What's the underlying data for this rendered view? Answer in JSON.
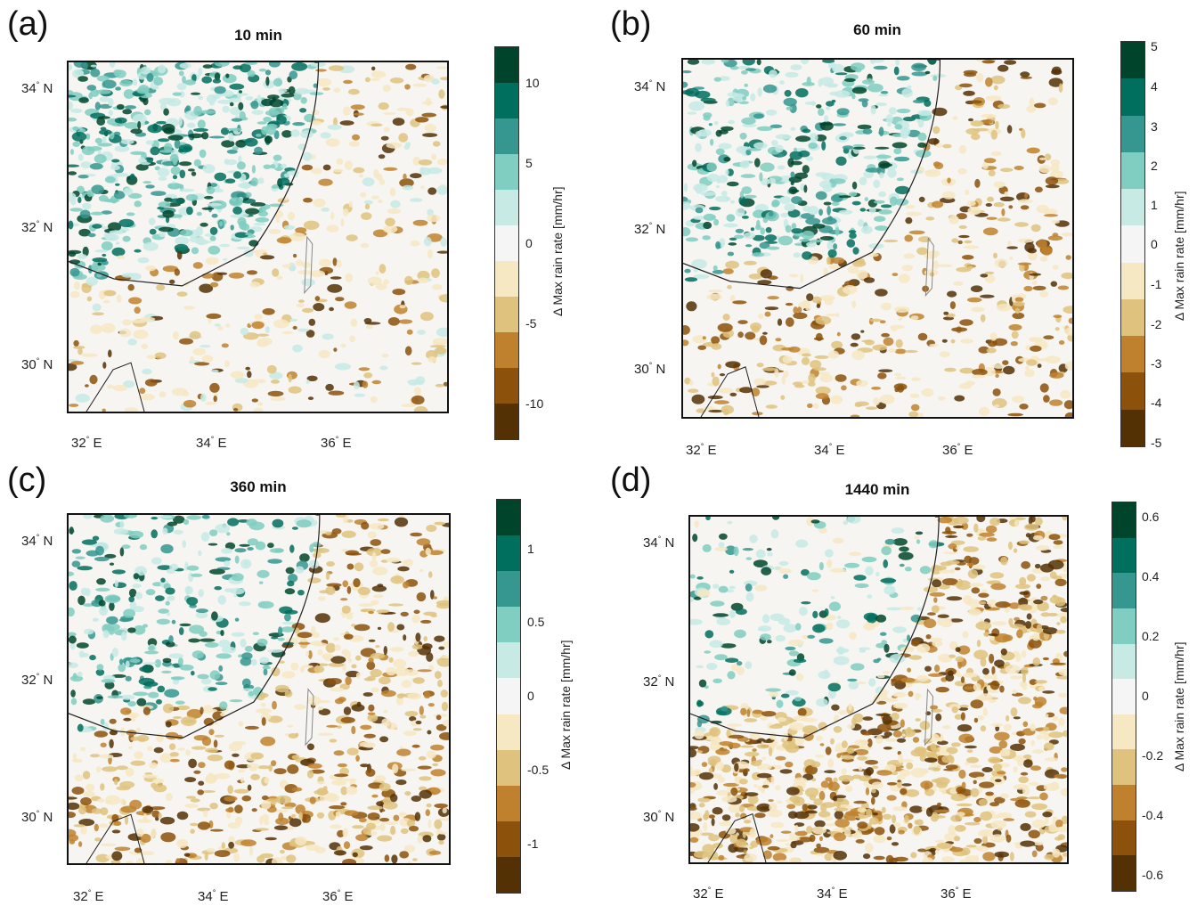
{
  "panels": [
    {
      "letter": "(a)",
      "title": "10 min",
      "lat_labels": [
        "34",
        "32",
        "30"
      ],
      "lon_labels": [
        "32",
        "34",
        "36"
      ],
      "lat_suffix": "N",
      "lon_suffix": "E",
      "colorbar": {
        "label": "Δ Max rain rate [mm/hr]",
        "ticks": [
          "10",
          "5",
          "0",
          "-5",
          "-10"
        ]
      },
      "field": {
        "wet_bias": 0.85,
        "dry_bias": 0.25
      }
    },
    {
      "letter": "(b)",
      "title": "60 min",
      "lat_labels": [
        "34",
        "32",
        "30"
      ],
      "lon_labels": [
        "32",
        "34",
        "36"
      ],
      "lat_suffix": "N",
      "lon_suffix": "E",
      "colorbar": {
        "label": "Δ Max rain rate [mm/hr]",
        "ticks": [
          "5",
          "4",
          "3",
          "2",
          "1",
          "0",
          "-1",
          "-2",
          "-3",
          "-4",
          "-5"
        ]
      },
      "field": {
        "wet_bias": 0.65,
        "dry_bias": 0.4
      }
    },
    {
      "letter": "(c)",
      "title": "360 min",
      "lat_labels": [
        "34",
        "32",
        "30"
      ],
      "lon_labels": [
        "32",
        "34",
        "36"
      ],
      "lat_suffix": "N",
      "lon_suffix": "E",
      "colorbar": {
        "label": "Δ Max rain rate [mm/hr]",
        "ticks": [
          "1",
          "0.5",
          "0",
          "-0.5",
          "-1"
        ]
      },
      "field": {
        "wet_bias": 0.45,
        "dry_bias": 0.65
      }
    },
    {
      "letter": "(d)",
      "title": "1440 min",
      "lat_labels": [
        "34",
        "32",
        "30"
      ],
      "lon_labels": [
        "32",
        "34",
        "36"
      ],
      "lat_suffix": "N",
      "lon_suffix": "E",
      "colorbar": {
        "label": "Δ Max rain rate [mm/hr]",
        "ticks": [
          "0.6",
          "0.4",
          "0.2",
          "0",
          "-0.2",
          "-0.4",
          "-0.6"
        ]
      },
      "field": {
        "wet_bias": 0.2,
        "dry_bias": 0.9
      }
    }
  ],
  "colormap": [
    "#00452b",
    "#016f5e",
    "#35978f",
    "#80cdc1",
    "#c7eae5",
    "#f5f5f5",
    "#f6e8c3",
    "#dfc27d",
    "#bf812d",
    "#8c510a",
    "#543005"
  ]
}
